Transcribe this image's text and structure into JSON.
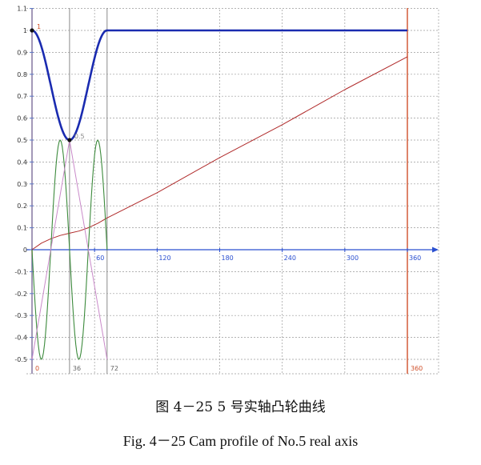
{
  "caption_zh": "图 4－25 5 号实轴凸轮曲线",
  "caption_en": "Fig. 4－25 Cam profile of No.5 real axis",
  "chart_data": {
    "type": "line",
    "xlim": [
      0,
      360
    ],
    "ylim": [
      -0.55,
      1.1
    ],
    "x_ticks": [
      0,
      60,
      120,
      180,
      240,
      300,
      360
    ],
    "y_ticks": [
      1.1,
      1,
      0.9,
      0.8,
      0.7,
      0.6,
      0.5,
      0.4,
      0.3,
      0.2,
      0.1,
      0,
      -0.1,
      -0.2,
      -0.3,
      -0.4,
      -0.5
    ],
    "y_tick_labels": [
      "1.1",
      "1",
      "0.9",
      "0.8",
      "0.7",
      "0.6",
      "0.5",
      "0.4",
      "0.3",
      "0.2",
      "0.1",
      "0",
      "-0.1",
      "-0.2",
      "-0.3",
      "-0.4",
      "-0.5"
    ],
    "markers": [
      {
        "x": 0,
        "label": "0"
      },
      {
        "x": 36,
        "label": "36"
      },
      {
        "x": 72,
        "label": "72"
      },
      {
        "x": 360,
        "label": "360"
      }
    ],
    "point_labels": [
      {
        "x": 0,
        "y": 1,
        "label": "1"
      },
      {
        "x": 36,
        "y": 0.5,
        "label": "0.5"
      }
    ],
    "grid": true,
    "series": [
      {
        "color": "#1a2bb0",
        "x": [
          0,
          9,
          18,
          27,
          36,
          45,
          54,
          63,
          72,
          90,
          180,
          270,
          360
        ],
        "y": [
          1,
          0.93,
          0.75,
          0.57,
          0.5,
          0.57,
          0.75,
          0.93,
          1,
          1,
          1,
          1,
          1
        ]
      },
      {
        "color": "#b02a2a",
        "x": [
          0,
          9,
          18,
          27,
          36,
          45,
          54,
          63,
          72,
          120,
          180,
          240,
          300,
          360
        ],
        "y": [
          0,
          0.03,
          0.05,
          0.065,
          0.075,
          0.085,
          0.1,
          0.12,
          0.145,
          0.26,
          0.42,
          0.57,
          0.73,
          0.88
        ]
      },
      {
        "color": "#3c8a3c",
        "x": [
          0,
          4.5,
          9,
          13.5,
          18,
          22.5,
          27,
          31.5,
          36,
          40.5,
          45,
          49.5,
          54,
          58.5,
          63,
          67.5,
          72
        ],
        "y": [
          0,
          -0.29,
          -0.45,
          -0.5,
          -0.45,
          -0.29,
          0,
          0.29,
          0.45,
          0.5,
          0.45,
          0.29,
          0,
          -0.29,
          -0.45,
          -0.5,
          -0.45
        ]
      },
      {
        "color": "#c98ac9",
        "x": [
          0,
          36,
          72
        ],
        "y": [
          -0.5,
          0.5,
          -0.5
        ]
      }
    ]
  }
}
